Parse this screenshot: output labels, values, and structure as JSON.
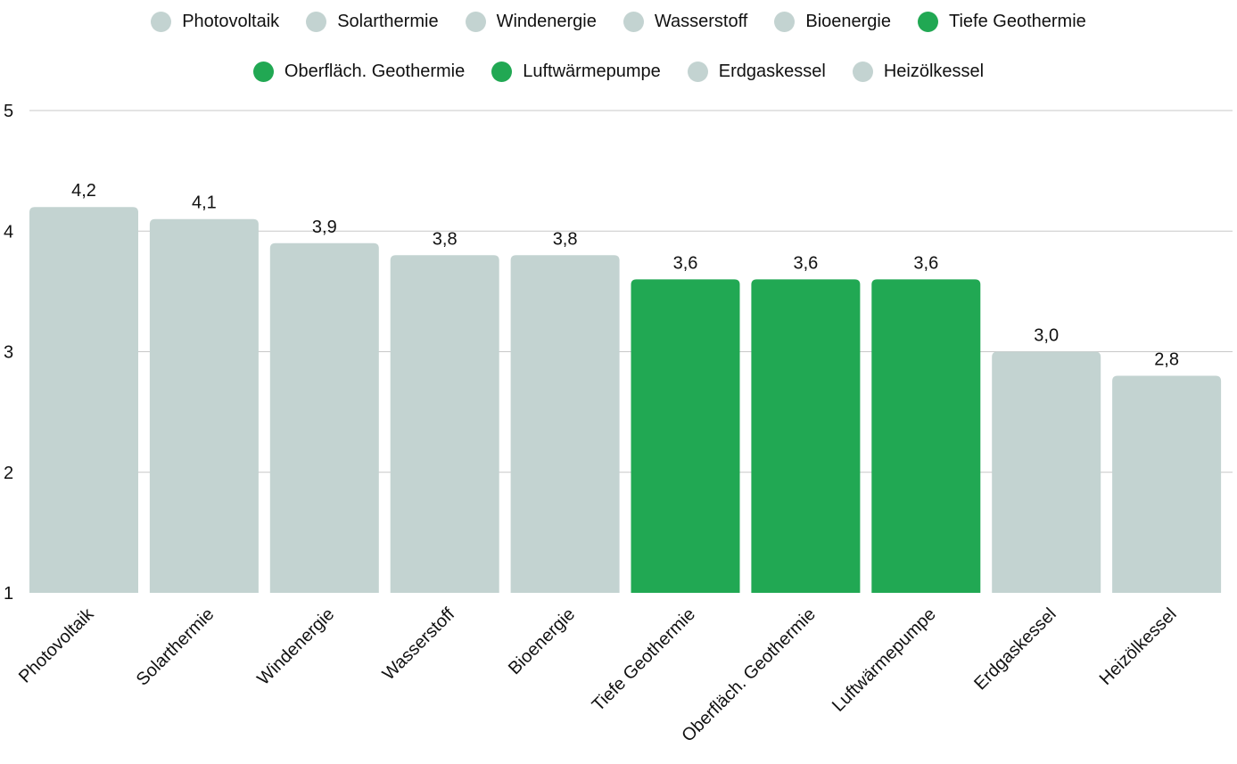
{
  "chart_data": {
    "type": "bar",
    "categories": [
      "Photovoltaik",
      "Solarthermie",
      "Windenergie",
      "Wasserstoff",
      "Bioenergie",
      "Tiefe Geothermie",
      "Oberfläch. Geothermie",
      "Luftwärmepumpe",
      "Erdgaskessel",
      "Heizölkessel"
    ],
    "values": [
      4.2,
      4.1,
      3.9,
      3.8,
      3.8,
      3.6,
      3.6,
      3.6,
      3.0,
      2.8
    ],
    "value_labels": [
      "4,2",
      "4,1",
      "3,9",
      "3,8",
      "3,8",
      "3,6",
      "3,6",
      "3,6",
      "3,0",
      "2,8"
    ],
    "colors": [
      "#c3d3d1",
      "#c3d3d1",
      "#c3d3d1",
      "#c3d3d1",
      "#c3d3d1",
      "#21a853",
      "#21a853",
      "#21a853",
      "#c3d3d1",
      "#c3d3d1"
    ],
    "ylim": [
      1,
      5
    ],
    "yticks": [
      "1",
      "2",
      "3",
      "4",
      "5"
    ],
    "grid": true,
    "legend_position": "top",
    "xlabel": "",
    "ylabel": ""
  }
}
